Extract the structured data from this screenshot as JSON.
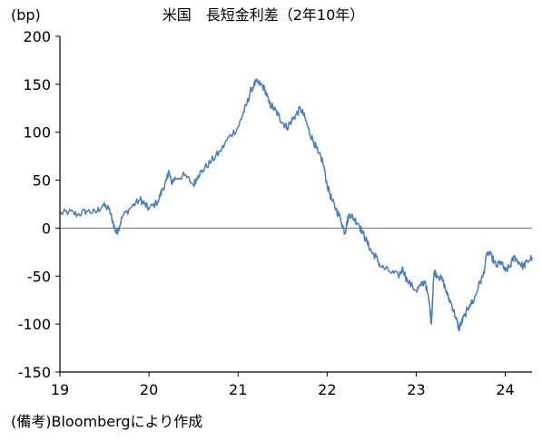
{
  "chart_data": {
    "type": "line",
    "title": "米国　長短金利差（2年10年）",
    "yunit": "(bp)",
    "source_note": "(備考)Bloombergにより作成",
    "ylim": [
      -150,
      200
    ],
    "yticks": [
      200,
      150,
      100,
      50,
      0,
      -50,
      -100,
      -150
    ],
    "xlim": [
      19,
      24.3
    ],
    "xticks": [
      "19",
      "20",
      "21",
      "22",
      "23",
      "24"
    ],
    "grid": false,
    "legend": "none",
    "zero_line": true,
    "colors": {
      "series": "#4a7ebb",
      "axis": "#000000",
      "zero_line": "#808080"
    },
    "series": [
      {
        "x": [
          19.0,
          19.1,
          19.2,
          19.3,
          19.4,
          19.48,
          19.55,
          19.6,
          19.63,
          19.66,
          19.7,
          19.8,
          19.9,
          19.95,
          20.0,
          20.1,
          20.15,
          20.2,
          20.22,
          20.25,
          20.3,
          20.4,
          20.5,
          20.55,
          20.6,
          20.7,
          20.8,
          20.9,
          21.0,
          21.05,
          21.1,
          21.15,
          21.2,
          21.25,
          21.3,
          21.35,
          21.4,
          21.45,
          21.5,
          21.55,
          21.6,
          21.65,
          21.7,
          21.75,
          21.8,
          21.85,
          21.9,
          21.95,
          22.0,
          22.05,
          22.1,
          22.15,
          22.2,
          22.22,
          22.25,
          22.3,
          22.35,
          22.4,
          22.45,
          22.5,
          22.55,
          22.6,
          22.7,
          22.8,
          22.85,
          22.9,
          23.0,
          23.05,
          23.1,
          23.15,
          23.17,
          23.2,
          23.25,
          23.3,
          23.35,
          23.4,
          23.45,
          23.48,
          23.5,
          23.55,
          23.6,
          23.65,
          23.7,
          23.75,
          23.8,
          23.85,
          23.9,
          23.95,
          24.0,
          24.05,
          24.1,
          24.15,
          24.2,
          24.25,
          24.3
        ],
        "values": [
          15,
          17,
          14,
          18,
          16,
          24,
          20,
          5,
          -5,
          0,
          12,
          22,
          30,
          25,
          20,
          28,
          40,
          50,
          60,
          48,
          52,
          55,
          45,
          55,
          60,
          70,
          80,
          95,
          105,
          118,
          130,
          145,
          152,
          150,
          145,
          130,
          125,
          118,
          110,
          105,
          112,
          118,
          125,
          115,
          100,
          90,
          78,
          70,
          45,
          30,
          20,
          10,
          -5,
          5,
          15,
          10,
          5,
          -5,
          -15,
          -25,
          -30,
          -40,
          -45,
          -50,
          -42,
          -55,
          -65,
          -60,
          -55,
          -80,
          -100,
          -45,
          -50,
          -55,
          -70,
          -80,
          -95,
          -105,
          -100,
          -90,
          -80,
          -75,
          -60,
          -50,
          -25,
          -30,
          -40,
          -35,
          -45,
          -40,
          -30,
          -35,
          -40,
          -35,
          -30
        ]
      }
    ]
  }
}
